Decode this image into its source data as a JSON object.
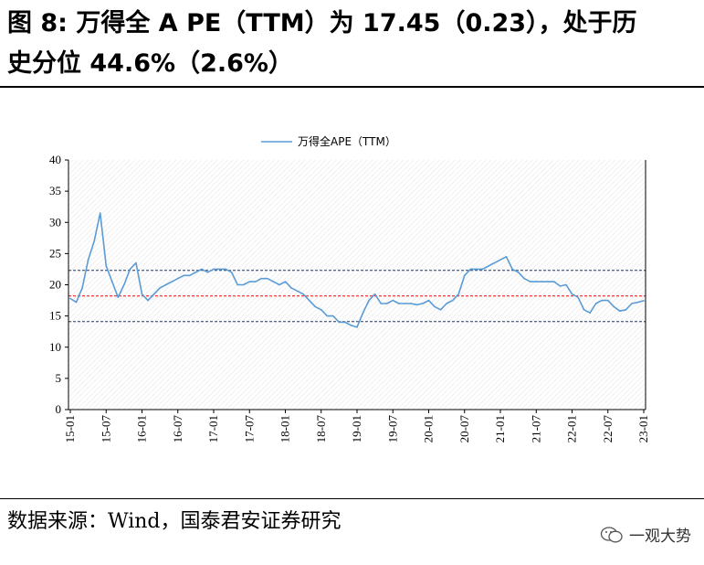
{
  "header": {
    "title_line1": "图 8:  万得全 A PE（TTM）为 17.45（0.23），处于历",
    "title_line2": "史分位 44.6%（2.6%）"
  },
  "footer": {
    "source": "数据来源：Wind，国泰君安证券研究",
    "watermark": "一观大势"
  },
  "colors": {
    "series": "#5b9bd5",
    "mean_line": "#ff0000",
    "band_line": "#1f3864"
  },
  "chart_data": {
    "type": "line",
    "legend_position": "top-center",
    "grid": false,
    "ylim": [
      0,
      40
    ],
    "yticks": [
      "0",
      "5",
      "10",
      "15",
      "20",
      "25",
      "30",
      "35",
      "40"
    ],
    "xticks": [
      "15-01",
      "15-07",
      "16-01",
      "16-07",
      "17-01",
      "17-07",
      "18-01",
      "18-07",
      "19-01",
      "19-07",
      "20-01",
      "20-07",
      "21-01",
      "21-07",
      "22-01",
      "22-07",
      "23-01"
    ],
    "series": [
      {
        "name": "万得全APE（TTM）",
        "x": [
          "2015-01",
          "2015-02",
          "2015-03",
          "2015-04",
          "2015-05",
          "2015-06",
          "2015-07",
          "2015-08",
          "2015-09",
          "2015-10",
          "2015-11",
          "2015-12",
          "2016-01",
          "2016-02",
          "2016-03",
          "2016-04",
          "2016-05",
          "2016-06",
          "2016-07",
          "2016-08",
          "2016-09",
          "2016-10",
          "2016-11",
          "2016-12",
          "2017-01",
          "2017-02",
          "2017-03",
          "2017-04",
          "2017-05",
          "2017-06",
          "2017-07",
          "2017-08",
          "2017-09",
          "2017-10",
          "2017-11",
          "2017-12",
          "2018-01",
          "2018-02",
          "2018-03",
          "2018-04",
          "2018-05",
          "2018-06",
          "2018-07",
          "2018-08",
          "2018-09",
          "2018-10",
          "2018-11",
          "2018-12",
          "2019-01",
          "2019-02",
          "2019-03",
          "2019-04",
          "2019-05",
          "2019-06",
          "2019-07",
          "2019-08",
          "2019-09",
          "2019-10",
          "2019-11",
          "2019-12",
          "2020-01",
          "2020-02",
          "2020-03",
          "2020-04",
          "2020-05",
          "2020-06",
          "2020-07",
          "2020-08",
          "2020-09",
          "2020-10",
          "2020-11",
          "2020-12",
          "2021-01",
          "2021-02",
          "2021-03",
          "2021-04",
          "2021-05",
          "2021-06",
          "2021-07",
          "2021-08",
          "2021-09",
          "2021-10",
          "2021-11",
          "2021-12",
          "2022-01",
          "2022-02",
          "2022-03",
          "2022-04",
          "2022-05",
          "2022-06",
          "2022-07",
          "2022-08",
          "2022-09",
          "2022-10",
          "2022-11",
          "2022-12",
          "2023-01"
        ],
        "values": [
          17.8,
          17.2,
          19.5,
          24.0,
          27.0,
          31.5,
          23.0,
          20.5,
          18.0,
          20.0,
          22.5,
          23.5,
          18.5,
          17.5,
          18.5,
          19.5,
          20.0,
          20.5,
          21.0,
          21.5,
          21.5,
          22.0,
          22.5,
          22.0,
          22.5,
          22.5,
          22.5,
          22.0,
          20.0,
          20.0,
          20.5,
          20.5,
          21.0,
          21.0,
          20.5,
          20.0,
          20.5,
          19.5,
          19.0,
          18.5,
          17.5,
          16.5,
          16.0,
          15.0,
          15.0,
          14.0,
          14.0,
          13.5,
          13.2,
          15.5,
          17.5,
          18.5,
          17.0,
          17.0,
          17.5,
          17.0,
          17.0,
          17.0,
          16.8,
          17.0,
          17.5,
          16.5,
          16.0,
          17.0,
          17.5,
          18.5,
          21.5,
          22.5,
          22.5,
          22.5,
          23.0,
          23.5,
          24.0,
          24.5,
          22.5,
          22.0,
          21.0,
          20.5,
          20.5,
          20.5,
          20.5,
          20.5,
          19.8,
          20.0,
          18.5,
          18.0,
          16.0,
          15.5,
          17.0,
          17.5,
          17.5,
          16.5,
          15.8,
          16.0,
          17.0,
          17.2,
          17.45
        ]
      }
    ],
    "reference_lines": [
      {
        "label": "mean",
        "value": 18.2,
        "color": "#ff0000"
      },
      {
        "label": "upper",
        "value": 22.3,
        "color": "#1f3864"
      },
      {
        "label": "lower",
        "value": 14.1,
        "color": "#1f3864"
      }
    ]
  }
}
